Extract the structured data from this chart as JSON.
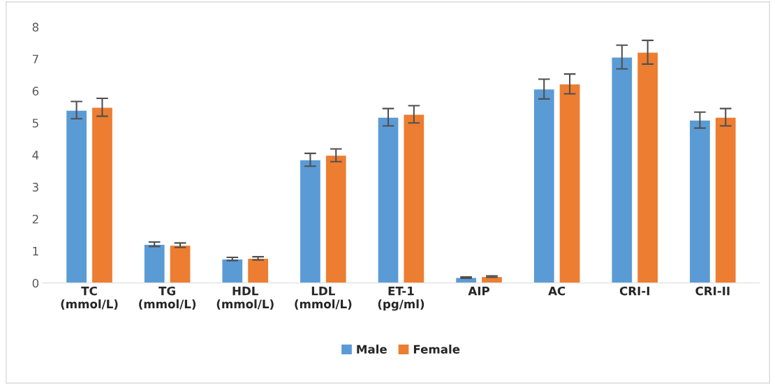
{
  "chart_data": {
    "type": "bar",
    "categories": [
      "TC\n(mmol/L)",
      "TG\n(mmol/L)",
      "HDL\n(mmol/L)",
      "LDL\n(mmol/L)",
      "ET-1\n(pg/ml)",
      "AIP",
      "AC",
      "CRI-I",
      "CRI-II"
    ],
    "series": [
      {
        "name": "Male",
        "color": "#5b9bd5",
        "values": [
          5.4,
          1.21,
          0.75,
          3.85,
          5.18,
          0.17,
          6.06,
          7.06,
          5.09
        ],
        "errors": [
          0.27,
          0.07,
          0.05,
          0.2,
          0.27,
          0.02,
          0.31,
          0.37,
          0.25
        ]
      },
      {
        "name": "Female",
        "color": "#ed7d31",
        "values": [
          5.49,
          1.18,
          0.77,
          3.99,
          5.27,
          0.2,
          6.22,
          7.21,
          5.18
        ],
        "errors": [
          0.28,
          0.07,
          0.05,
          0.2,
          0.27,
          0.02,
          0.31,
          0.37,
          0.27
        ]
      }
    ],
    "ylim": [
      0,
      8
    ],
    "yticks": [
      0,
      1,
      2,
      3,
      4,
      5,
      6,
      7,
      8
    ],
    "grid": false,
    "legend": "bottom"
  }
}
